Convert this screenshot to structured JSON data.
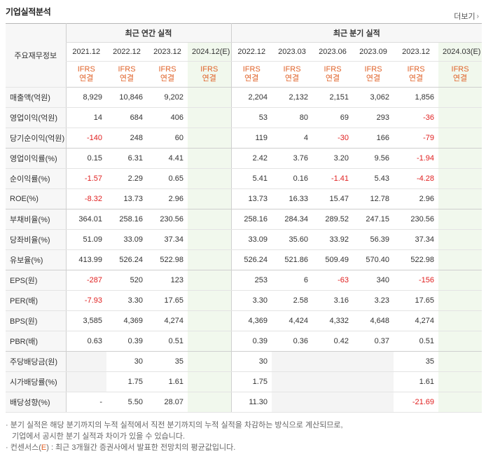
{
  "header": {
    "title": "기업실적분석",
    "more_label": "더보기",
    "more_icon": "chevron-right-icon"
  },
  "table": {
    "row_header_label": "주요재무정보",
    "annual_group_label": "최근 연간 실적",
    "quarter_group_label": "최근 분기 실적",
    "periods": [
      "2021.12",
      "2022.12",
      "2023.12",
      "2024.12(E)",
      "2022.12",
      "2023.03",
      "2023.06",
      "2023.09",
      "2023.12",
      "2024.03(E)"
    ],
    "ifrs_line1": "IFRS",
    "ifrs_line2": "연결",
    "rows": [
      {
        "label": "매출액(억원)",
        "values": [
          "8,929",
          "10,846",
          "9,202",
          "",
          "2,204",
          "2,132",
          "2,151",
          "3,062",
          "1,856",
          ""
        ]
      },
      {
        "label": "영업이익(억원)",
        "values": [
          "14",
          "684",
          "406",
          "",
          "53",
          "80",
          "69",
          "293",
          "-36",
          ""
        ]
      },
      {
        "label": "당기순이익(억원)",
        "values": [
          "-140",
          "248",
          "60",
          "",
          "119",
          "4",
          "-30",
          "166",
          "-79",
          ""
        ]
      },
      {
        "label": "영업이익률(%)",
        "values": [
          "0.15",
          "6.31",
          "4.41",
          "",
          "2.42",
          "3.76",
          "3.20",
          "9.56",
          "-1.94",
          ""
        ]
      },
      {
        "label": "순이익률(%)",
        "values": [
          "-1.57",
          "2.29",
          "0.65",
          "",
          "5.41",
          "0.16",
          "-1.41",
          "5.43",
          "-4.28",
          ""
        ]
      },
      {
        "label": "ROE(%)",
        "values": [
          "-8.32",
          "13.73",
          "2.96",
          "",
          "13.73",
          "16.33",
          "15.47",
          "12.78",
          "2.96",
          ""
        ]
      },
      {
        "label": "부채비율(%)",
        "values": [
          "364.01",
          "258.16",
          "230.56",
          "",
          "258.16",
          "284.34",
          "289.52",
          "247.15",
          "230.56",
          ""
        ]
      },
      {
        "label": "당좌비율(%)",
        "values": [
          "51.09",
          "33.09",
          "37.34",
          "",
          "33.09",
          "35.60",
          "33.92",
          "56.39",
          "37.34",
          ""
        ]
      },
      {
        "label": "유보율(%)",
        "values": [
          "413.99",
          "526.24",
          "522.98",
          "",
          "526.24",
          "521.86",
          "509.49",
          "570.40",
          "522.98",
          ""
        ]
      },
      {
        "label": "EPS(원)",
        "values": [
          "-287",
          "520",
          "123",
          "",
          "253",
          "6",
          "-63",
          "340",
          "-156",
          ""
        ]
      },
      {
        "label": "PER(배)",
        "values": [
          "-7.93",
          "3.30",
          "17.65",
          "",
          "3.30",
          "2.58",
          "3.16",
          "3.23",
          "17.65",
          ""
        ]
      },
      {
        "label": "BPS(원)",
        "values": [
          "3,585",
          "4,369",
          "4,274",
          "",
          "4,369",
          "4,424",
          "4,332",
          "4,648",
          "4,274",
          ""
        ]
      },
      {
        "label": "PBR(배)",
        "values": [
          "0.63",
          "0.39",
          "0.51",
          "",
          "0.39",
          "0.36",
          "0.42",
          "0.37",
          "0.51",
          ""
        ]
      },
      {
        "label": "주당배당금(원)",
        "values": [
          "",
          "30",
          "35",
          "",
          "30",
          "",
          "",
          "",
          "35",
          ""
        ]
      },
      {
        "label": "시가배당률(%)",
        "values": [
          "",
          "1.75",
          "1.61",
          "",
          "1.75",
          "",
          "",
          "",
          "1.61",
          ""
        ]
      },
      {
        "label": "배당성향(%)",
        "values": [
          "-",
          "5.50",
          "28.07",
          "",
          "11.30",
          "",
          "",
          "",
          "-21.69",
          ""
        ]
      }
    ]
  },
  "notes": {
    "line1": "· 분기 실적은 해당 분기까지의 누적 실적에서 직전 분기까지의 누적 실적을 차감하는 방식으로 계산되므로,",
    "line2": "  기업에서 공시한 분기 실적과 차이가 있을 수 있습니다.",
    "line3_prefix": "· 컨센서스(",
    "line3_e": "E",
    "line3_suffix": ") : 최근 3개월간 증권사에서 발표한 전망치의 평균값입니다."
  },
  "colors": {
    "negative": "#e02020",
    "ifrs": "#e0632a",
    "estimate_bg": "#f1f8ed"
  }
}
